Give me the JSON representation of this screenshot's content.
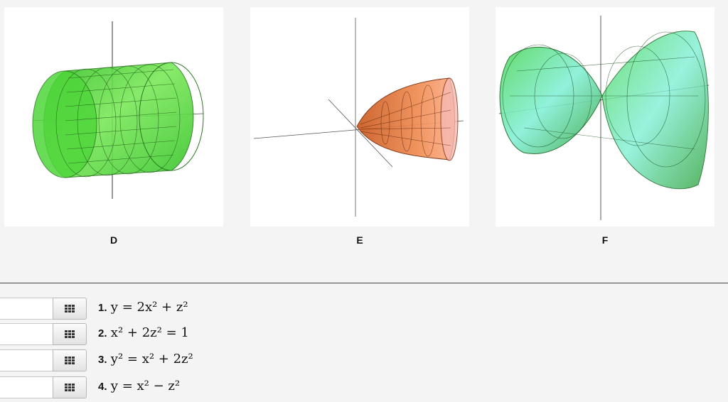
{
  "plots": [
    {
      "label": "D"
    },
    {
      "label": "E"
    },
    {
      "label": "F"
    }
  ],
  "answers": [
    {
      "number": "1.",
      "equation": "y = 2x² + z²",
      "value": ""
    },
    {
      "number": "2.",
      "equation": "x² + 2z² = 1",
      "value": ""
    },
    {
      "number": "3.",
      "equation": "y² = x² + 2z²",
      "value": ""
    },
    {
      "number": "4.",
      "equation": "y = x² − z²",
      "value": ""
    }
  ],
  "colors": {
    "surface_d": "#3fcf2f",
    "surface_e": "#f07a3a",
    "surface_f": "#5ee07a"
  },
  "icons": {
    "choice_button": "grid-icon"
  }
}
